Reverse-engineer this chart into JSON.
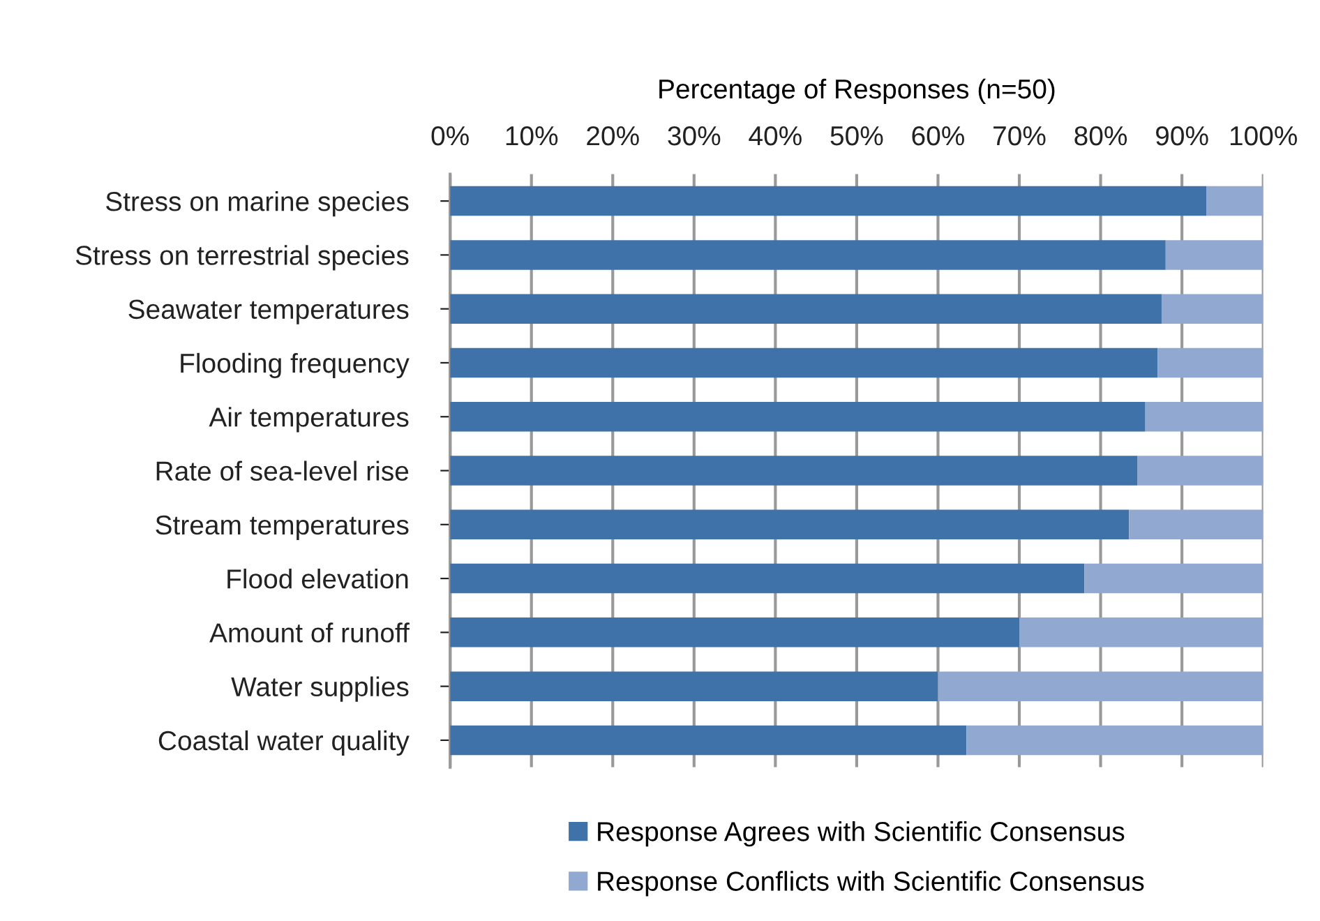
{
  "chart_data": {
    "type": "bar",
    "orientation": "horizontal",
    "stacked": true,
    "xlabel": "Percentage of Responses (n=50)",
    "categories": [
      "Stress on marine species",
      "Stress on terrestrial species",
      "Seawater temperatures",
      "Flooding frequency",
      "Air temperatures",
      "Rate of sea-level rise",
      "Stream temperatures",
      "Flood elevation",
      "Amount of runoff",
      "Water supplies",
      "Coastal water quality"
    ],
    "series": [
      {
        "name": "Response Agrees with Scientific Consensus",
        "color": "#3f72a8",
        "values": [
          93,
          88,
          87.5,
          87,
          85.5,
          84.5,
          83.5,
          78,
          70,
          60,
          63.5
        ]
      },
      {
        "name": "Response Conflicts with Scientific Consensus",
        "color": "#91a9d0",
        "values": [
          7,
          12,
          12.5,
          13,
          14.5,
          15.5,
          16.5,
          22,
          30,
          40,
          36.5
        ]
      }
    ],
    "xlim": [
      0,
      100
    ],
    "xticks": [
      {
        "value": 0,
        "label": "0%"
      },
      {
        "value": 10,
        "label": "10%"
      },
      {
        "value": 20,
        "label": "20%"
      },
      {
        "value": 30,
        "label": "30%"
      },
      {
        "value": 40,
        "label": "40%"
      },
      {
        "value": 50,
        "label": "50%"
      },
      {
        "value": 60,
        "label": "60%"
      },
      {
        "value": 70,
        "label": "70%"
      },
      {
        "value": 80,
        "label": "80%"
      },
      {
        "value": 90,
        "label": "90%"
      },
      {
        "value": 100,
        "label": "100%"
      }
    ],
    "grid": "x",
    "legend": "bottom"
  }
}
